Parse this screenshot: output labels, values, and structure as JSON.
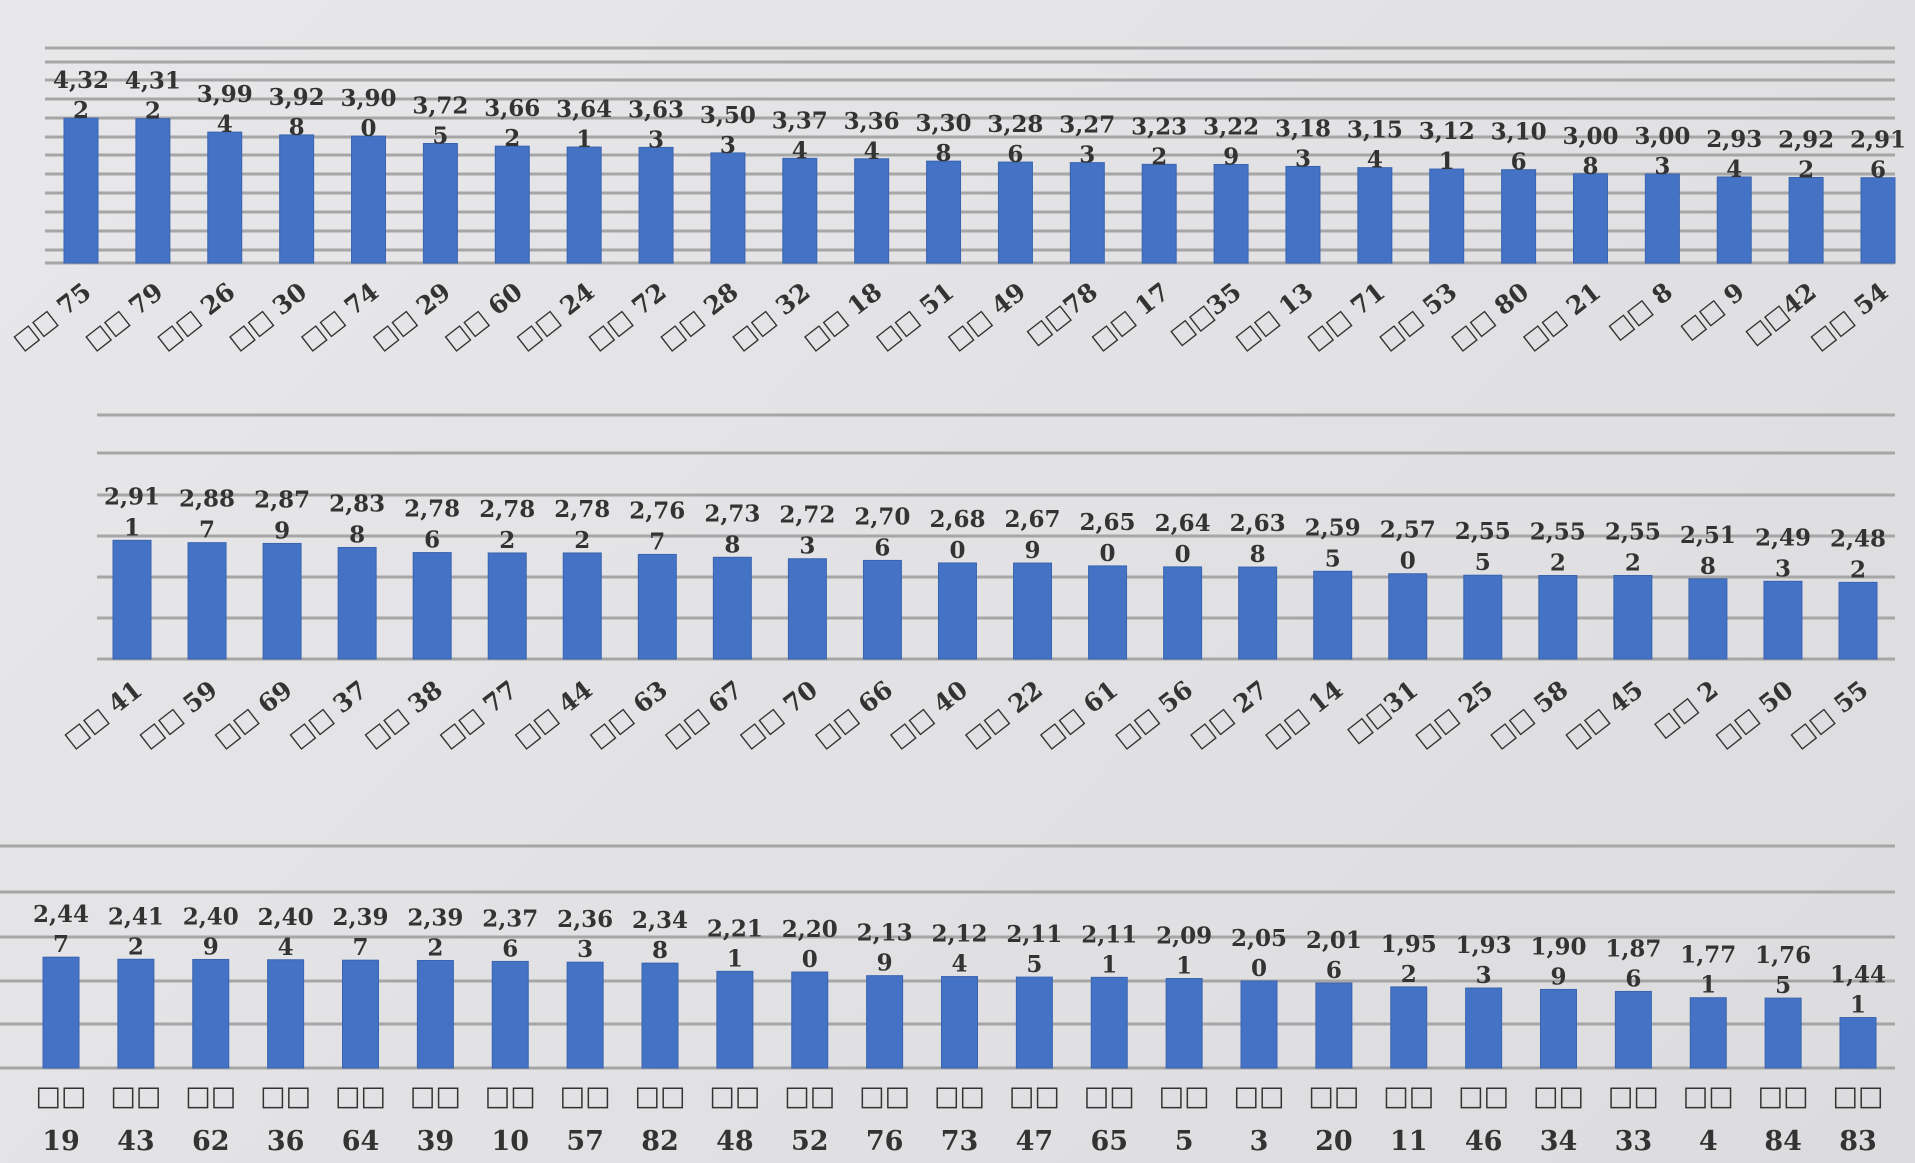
{
  "chart_data": [
    {
      "type": "bar",
      "bar_color": "#4472C4",
      "grid_color": "#a6a6a6",
      "categories": [
        "□□ 75",
        "□□ 79",
        "□□ 26",
        "□□ 30",
        "□□ 74",
        "□□ 29",
        "□□ 60",
        "□□ 24",
        "□□ 72",
        "□□ 28",
        "□□ 32",
        "□□ 18",
        "□□ 51",
        "□□ 49",
        "□□78",
        "□□ 17",
        "□□35",
        "□□ 13",
        "□□ 71",
        "□□ 53",
        "□□ 80",
        "□□ 21",
        "□□ 8",
        "□□ 9",
        "□□42",
        "□□ 54"
      ],
      "labels": [
        [
          "4,32",
          "2"
        ],
        [
          "4,31",
          "2"
        ],
        [
          "3,99",
          "4"
        ],
        [
          "3,92",
          "8"
        ],
        [
          "3,90",
          "0"
        ],
        [
          "3,72",
          "5"
        ],
        [
          "3,66",
          "2"
        ],
        [
          "3,64",
          "1"
        ],
        [
          "3,63",
          "3"
        ],
        [
          "3,50",
          "3"
        ],
        [
          "3,37",
          "4"
        ],
        [
          "3,36",
          "4"
        ],
        [
          "3,30",
          "8"
        ],
        [
          "3,28",
          "6"
        ],
        [
          "3,27",
          "3"
        ],
        [
          "3,23",
          "2"
        ],
        [
          "3,22",
          "9"
        ],
        [
          "3,18",
          "3"
        ],
        [
          "3,15",
          "4"
        ],
        [
          "3,12",
          "1"
        ],
        [
          "3,10",
          "6"
        ],
        [
          "3,00",
          "8"
        ],
        [
          "3,00",
          "3"
        ],
        [
          "2,93",
          "4"
        ],
        [
          "2,92",
          "2"
        ],
        [
          "2,91",
          "6"
        ]
      ],
      "values": [
        4.322,
        4.312,
        3.994,
        3.928,
        3.9,
        3.725,
        3.662,
        3.641,
        3.633,
        3.503,
        3.374,
        3.364,
        3.308,
        3.286,
        3.273,
        3.232,
        3.229,
        3.183,
        3.154,
        3.121,
        3.106,
        3.008,
        3.003,
        2.934,
        2.922,
        2.916
      ]
    },
    {
      "type": "bar",
      "bar_color": "#4472C4",
      "grid_color": "#a6a6a6",
      "categories": [
        "□□ 41",
        "□□ 59",
        "□□ 69",
        "□□ 37",
        "□□ 38",
        "□□ 77",
        "□□ 44",
        "□□ 63",
        "□□ 67",
        "□□ 70",
        "□□ 66",
        "□□ 40",
        "□□ 22",
        "□□ 61",
        "□□ 56",
        "□□ 27",
        "□□ 14",
        "□□31",
        "□□ 25",
        "□□ 58",
        "□□ 45",
        "□□ 2",
        "□□ 50",
        "□□ 55"
      ],
      "labels": [
        [
          "2,91",
          "1"
        ],
        [
          "2,88",
          "7"
        ],
        [
          "2,87",
          "9"
        ],
        [
          "2,83",
          "8"
        ],
        [
          "2,78",
          "6"
        ],
        [
          "2,78",
          "2"
        ],
        [
          "2,78",
          "2"
        ],
        [
          "2,76",
          "7"
        ],
        [
          "2,73",
          "8"
        ],
        [
          "2,72",
          "3"
        ],
        [
          "2,70",
          "6"
        ],
        [
          "2,68",
          "0"
        ],
        [
          "2,67",
          "9"
        ],
        [
          "2,65",
          "0"
        ],
        [
          "2,64",
          "0"
        ],
        [
          "2,63",
          "8"
        ],
        [
          "2,59",
          "5"
        ],
        [
          "2,57",
          "0"
        ],
        [
          "2,55",
          "5"
        ],
        [
          "2,55",
          "2"
        ],
        [
          "2,55",
          "2"
        ],
        [
          "2,51",
          "8"
        ],
        [
          "2,49",
          "3"
        ],
        [
          "2,48",
          "2"
        ]
      ],
      "values": [
        2.911,
        2.887,
        2.879,
        2.838,
        2.786,
        2.782,
        2.782,
        2.767,
        2.738,
        2.723,
        2.706,
        2.68,
        2.679,
        2.65,
        2.64,
        2.638,
        2.595,
        2.57,
        2.555,
        2.552,
        2.552,
        2.518,
        2.493,
        2.482
      ]
    },
    {
      "type": "bar",
      "bar_color": "#4472C4",
      "grid_color": "#a6a6a6",
      "categories": [
        "□□ 19",
        "□□ 43",
        "□□ 62",
        "□□ 36",
        "□□ 64",
        "□□ 39",
        "□□ 10",
        "□□ 57",
        "□□ 82",
        "□□ 48",
        "□□ 52",
        "□□ 76",
        "□□ 73",
        "□□ 47",
        "□□ 65",
        "□□ 5",
        "□□ 3",
        "□□ 20",
        "□□ 11",
        "□□ 46",
        "□□ 34",
        "□□ 33",
        "□□ 4",
        "□□ 84",
        "□□ 83"
      ],
      "labels": [
        [
          "2,44",
          "7"
        ],
        [
          "2,41",
          "2"
        ],
        [
          "2,40",
          "9"
        ],
        [
          "2,40",
          "4"
        ],
        [
          "2,39",
          "7"
        ],
        [
          "2,39",
          "2"
        ],
        [
          "2,37",
          "6"
        ],
        [
          "2,36",
          "3"
        ],
        [
          "2,34",
          "8"
        ],
        [
          "2,21",
          "1"
        ],
        [
          "2,20",
          "0"
        ],
        [
          "2,13",
          "9"
        ],
        [
          "2,12",
          "4"
        ],
        [
          "2,11",
          "5"
        ],
        [
          "2,11",
          "1"
        ],
        [
          "2,09",
          "1"
        ],
        [
          "2,05",
          "0"
        ],
        [
          "2,01",
          "6"
        ],
        [
          "1,95",
          "2"
        ],
        [
          "1,93",
          "3"
        ],
        [
          "1,90",
          "9"
        ],
        [
          "1,87",
          "6"
        ],
        [
          "1,77",
          "1"
        ],
        [
          "1,76",
          "5"
        ],
        [
          "1,44",
          "1"
        ]
      ],
      "values": [
        2.447,
        2.412,
        2.409,
        2.404,
        2.397,
        2.392,
        2.376,
        2.363,
        2.348,
        2.211,
        2.2,
        2.139,
        2.124,
        2.115,
        2.111,
        2.091,
        2.05,
        2.016,
        1.952,
        1.933,
        1.909,
        1.876,
        1.771,
        1.765,
        1.441
      ]
    }
  ]
}
